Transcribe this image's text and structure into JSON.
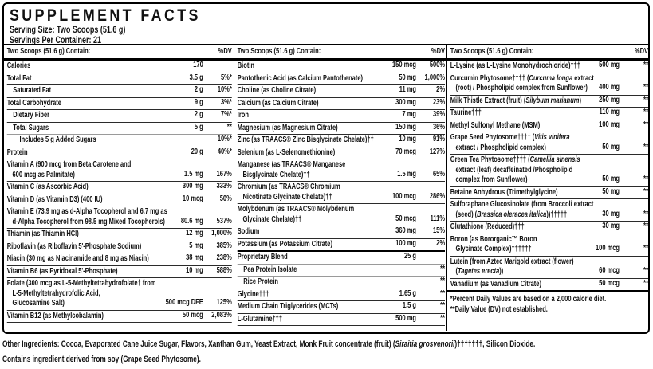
{
  "header": {
    "title": "SUPPLEMENT FACTS",
    "serving_size": "Serving Size: Two Scoops (51.6 g)",
    "servings_per_container": "Servings Per Container: 21"
  },
  "column_header": {
    "label": "Two Scoops (51.6 g) Contain:",
    "dv": "%DV"
  },
  "columns": [
    {
      "rows": [
        {
          "lines": [
            "Calories"
          ],
          "amount": "170",
          "dv": ""
        },
        {
          "lines": [
            "Total Fat"
          ],
          "amount": "3.5 g",
          "dv": "5%*"
        },
        {
          "lines": [
            "Saturated Fat"
          ],
          "indent": 1,
          "amount": "2 g",
          "dv": "10%*"
        },
        {
          "lines": [
            "Total Carbohydrate"
          ],
          "amount": "9 g",
          "dv": "3%*"
        },
        {
          "lines": [
            "Dietary Fiber"
          ],
          "indent": 1,
          "amount": "2 g",
          "dv": "7%*"
        },
        {
          "lines": [
            "Total Sugars"
          ],
          "indent": 1,
          "amount": "5 g",
          "dv": "**",
          "sep": "light"
        },
        {
          "lines": [
            "Includes 5 g Added Sugars"
          ],
          "indent": 2,
          "amount": "",
          "dv": "10%*"
        },
        {
          "lines": [
            "Protein"
          ],
          "amount": "20 g",
          "dv": "40%*"
        },
        {
          "lines": [
            "Vitamin A (900 mcg from Beta Carotene and",
            "600 mcg as Palmitate)"
          ],
          "amount": "1.5 mg",
          "dv": "167%"
        },
        {
          "lines": [
            "Vitamin C (as Ascorbic Acid)"
          ],
          "amount": "300 mg",
          "dv": "333%"
        },
        {
          "lines": [
            "Vitamin D (as Vitamin D3) (400 IU)"
          ],
          "amount": "10 mcg",
          "dv": "50%"
        },
        {
          "lines": [
            "Vitamin E (73.9 mg as d-Alpha Tocopherol and 6.7 mg as",
            "d-Alpha Tocopherol from 98.5 mg Mixed Tocopherols)"
          ],
          "amount": "80.6 mg",
          "dv": "537%"
        },
        {
          "lines": [
            "Thiamin (as Thiamin HCl)"
          ],
          "amount": "12 mg",
          "dv": "1,000%"
        },
        {
          "lines": [
            "Riboflavin (as Riboflavin 5'-Phosphate Sodium)"
          ],
          "amount": "5 mg",
          "dv": "385%"
        },
        {
          "lines": [
            "Niacin (30 mg as Niacinamide and 8 mg as Niacin)"
          ],
          "amount": "38 mg",
          "dv": "238%"
        },
        {
          "lines": [
            "Vitamin B6 (as Pyridoxal 5'-Phosphate)"
          ],
          "amount": "10 mg",
          "dv": "588%"
        },
        {
          "lines": [
            "Folate (300 mcg as L-5-Methyltetrahydrofolate† from",
            "L-5-Methyltetrahydrofolic Acid,",
            "Glucosamine Salt)"
          ],
          "amount": "500 mcg DFE",
          "dv": "125%"
        },
        {
          "lines": [
            "Vitamin B12 (as Methylcobalamin)"
          ],
          "amount": "50 mcg",
          "dv": "2,083%"
        }
      ]
    },
    {
      "rows": [
        {
          "lines": [
            "Biotin"
          ],
          "amount": "150 mcg",
          "dv": "500%"
        },
        {
          "lines": [
            "Pantothenic Acid (as Calcium Pantothenate)"
          ],
          "amount": "50 mg",
          "dv": "1,000%"
        },
        {
          "lines": [
            "Choline (as Choline Citrate)"
          ],
          "amount": "11 mg",
          "dv": "2%"
        },
        {
          "lines": [
            "Calcium (as Calcium Citrate)"
          ],
          "amount": "300 mg",
          "dv": "23%"
        },
        {
          "lines": [
            "Iron"
          ],
          "amount": "7 mg",
          "dv": "39%"
        },
        {
          "lines": [
            "Magnesium (as Magnesium Citrate)"
          ],
          "amount": "150 mg",
          "dv": "36%"
        },
        {
          "lines": [
            "Zinc (as TRAACS® Zinc Bisglycinate Chelate)††"
          ],
          "amount": "10 mg",
          "dv": "91%"
        },
        {
          "lines": [
            "Selenium (as L-Selenomethionine)"
          ],
          "amount": "70 mcg",
          "dv": "127%"
        },
        {
          "lines": [
            "Manganese (as TRAACS® Manganese",
            "Bisglycinate Chelate)††"
          ],
          "amount": "1.5 mg",
          "dv": "65%"
        },
        {
          "lines": [
            "Chromium (as TRAACS® Chromium",
            "Nicotinate Glycinate Chelate)††"
          ],
          "amount": "100 mcg",
          "dv": "286%"
        },
        {
          "lines": [
            "Molybdenum (as TRAACS® Molybdenum",
            "Glycinate Chelate)††"
          ],
          "amount": "50 mcg",
          "dv": "111%"
        },
        {
          "lines": [
            "Sodium"
          ],
          "amount": "360 mg",
          "dv": "15%"
        },
        {
          "lines": [
            "Potassium (as Potassium Citrate)"
          ],
          "amount": "100 mg",
          "dv": "2%",
          "sep": "thick"
        },
        {
          "lines": [
            "Proprietary Blend"
          ],
          "amount": "25 g",
          "dv": "",
          "sep": "light"
        },
        {
          "lines": [
            "Pea Protein Isolate"
          ],
          "indent": 1,
          "amount": "",
          "dv": "**",
          "sep": "light"
        },
        {
          "lines": [
            "Rice Protein"
          ],
          "indent": 1,
          "amount": "",
          "dv": "**"
        },
        {
          "lines": [
            "Glycine†††"
          ],
          "amount": "1.65 g",
          "dv": "**"
        },
        {
          "lines": [
            "Medium Chain Triglycerides (MCTs)"
          ],
          "amount": "1.5 g",
          "dv": "**"
        },
        {
          "lines": [
            "L-Glutamine†††"
          ],
          "amount": "500 mg",
          "dv": "**"
        }
      ]
    },
    {
      "rows": [
        {
          "lines": [
            "L-Lysine (as L-Lysine Monohydrochloride)†††"
          ],
          "amount": "500 mg",
          "dv": "**"
        },
        {
          "lines": [
            "Curcumin Phytosome†††† (Curcuma longa extract",
            "(root) / Phospholipid complex from Sunflower)"
          ],
          "amount": "400 mg",
          "dv": "**"
        },
        {
          "lines": [
            "Milk Thistle Extract (fruit) (Silybum marianum)"
          ],
          "amount": "250 mg",
          "dv": "**"
        },
        {
          "lines": [
            "Taurine†††"
          ],
          "amount": "110 mg",
          "dv": "**"
        },
        {
          "lines": [
            "Methyl Sulfonyl Methane (MSM)"
          ],
          "amount": "100 mg",
          "dv": "**"
        },
        {
          "lines": [
            "Grape Seed Phytosome†††† (Vitis vinifera",
            "extract / Phospholipid complex)"
          ],
          "amount": "50 mg",
          "dv": "**"
        },
        {
          "lines": [
            "Green Tea Phytosome†††† (Camellia sinensis",
            "extract (leaf) decaffeinated /Phospholipid",
            "complex from Sunflower)"
          ],
          "amount": "50 mg",
          "dv": "**"
        },
        {
          "lines": [
            "Betaine Anhydrous (Trimethylglycine)"
          ],
          "amount": "50 mg",
          "dv": "**"
        },
        {
          "lines": [
            "Sulforaphane Glucosinolate (from Broccoli extract",
            "(seed) (Brassica oleracea italica))†††††"
          ],
          "amount": "30 mg",
          "dv": "**"
        },
        {
          "lines": [
            "Glutathione (Reduced)†††"
          ],
          "amount": "30 mg",
          "dv": "**"
        },
        {
          "lines": [
            "Boron (as Bororganic™ Boron",
            "Glycinate Complex)††††††"
          ],
          "amount": "100 mcg",
          "dv": "**"
        },
        {
          "lines": [
            "Lutein (from Aztec Marigold extract (flower)",
            "(Tagetes erecta))"
          ],
          "amount": "60 mcg",
          "dv": "**"
        },
        {
          "lines": [
            "Vanadium (as Vanadium Citrate)"
          ],
          "amount": "50 mcg",
          "dv": "**",
          "sep": "none"
        }
      ]
    }
  ],
  "footnotes": [
    "*Percent Daily Values are based on a 2,000 calorie diet.",
    "**Daily Value (DV) not established."
  ],
  "other_ingredients": "Other Ingredients: Cocoa, Evaporated Cane Juice Sugar, Flavors, Xanthan Gum, Yeast Extract, Monk Fruit concentrate (fruit) (Siraitia grosvenorii)†††††††, Silicon Dioxide.",
  "allergen_statement": "Contains ingredient derived from soy (Grape Seed Phytosome).",
  "italic_terms": [
    "Curcuma longa",
    "Silybum marianum",
    "Vitis vinifera",
    "Camellia sinensis",
    "Brassica oleracea italica",
    "Tagetes erecta",
    "Siraitia grosvenorii"
  ],
  "colors": {
    "background": "#ffffff",
    "text": "#111111",
    "border": "#000000",
    "light_rule": "#9a9a9a"
  }
}
